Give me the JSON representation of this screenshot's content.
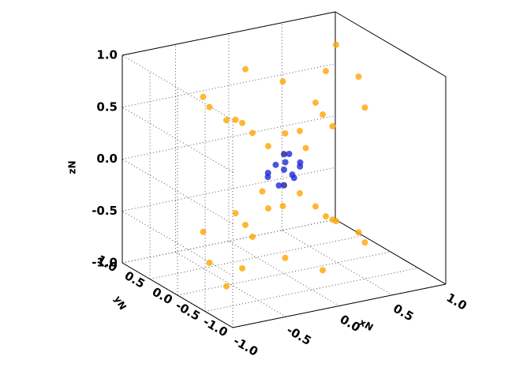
{
  "chart_data": {
    "type": "scatter3d",
    "xlabel": "xN",
    "ylabel": "yN",
    "zlabel": "zN",
    "xlim": [
      -1,
      1
    ],
    "ylim": [
      -1,
      1
    ],
    "zlim": [
      -1,
      1
    ],
    "xticks": [
      {
        "value": -1,
        "label": "-1.0"
      },
      {
        "value": -0.5,
        "label": "-0.5"
      },
      {
        "value": 0,
        "label": "0.0"
      },
      {
        "value": 0.5,
        "label": "0.5"
      },
      {
        "value": 1,
        "label": "1.0"
      }
    ],
    "yticks": [
      {
        "value": -1,
        "label": "-1.0"
      },
      {
        "value": -0.5,
        "label": "-0.5"
      },
      {
        "value": 0,
        "label": "0.0"
      },
      {
        "value": 0.5,
        "label": "0.5"
      },
      {
        "value": 1,
        "label": "1.0"
      }
    ],
    "zticks": [
      {
        "value": -1,
        "label": "-1.0"
      },
      {
        "value": -0.5,
        "label": "-0.5"
      },
      {
        "value": 0,
        "label": "0.0"
      },
      {
        "value": 0.5,
        "label": "0.5"
      },
      {
        "value": 1,
        "label": "1.0"
      }
    ],
    "grid": true,
    "series": [
      {
        "color": "#ffa500",
        "x": [
          0,
          0.2,
          -0.2,
          0.4,
          -0.4,
          0.3,
          -0.3,
          0.6,
          -0.6,
          0.5,
          -0.5,
          0.7,
          -0.7,
          0,
          0,
          0.8,
          -0.8,
          0.3,
          -0.3,
          0.1,
          0,
          0.2,
          -0.2,
          0.4,
          -0.4,
          0.3,
          -0.3,
          0.6,
          -0.6,
          0.5,
          -0.5,
          0.7,
          -0.7,
          0,
          0,
          0.8,
          -0.8,
          0.3,
          -0.3,
          -0.1
        ],
        "y": [
          0,
          0.1,
          -0.1,
          0.2,
          -0.2,
          -0.3,
          0.3,
          0.4,
          -0.4,
          -0.5,
          0.5,
          0,
          0,
          0.7,
          -0.7,
          0.6,
          -0.5,
          0.6,
          -0.6,
          -0.2,
          0,
          0.1,
          -0.1,
          0.2,
          -0.2,
          -0.3,
          0.3,
          0.4,
          -0.4,
          -0.5,
          0.5,
          0,
          0,
          0.7,
          -0.7,
          0.6,
          -0.5,
          0.6,
          -0.6,
          0.2
        ],
        "z": [
          0.15,
          0.3,
          0.3,
          0.5,
          0.5,
          0.45,
          0.45,
          0.7,
          0.7,
          0.65,
          0.65,
          0.75,
          0.75,
          0.75,
          0.75,
          0.85,
          0.8,
          0.6,
          0.6,
          0.25,
          -0.15,
          -0.3,
          -0.3,
          -0.5,
          -0.5,
          -0.45,
          -0.45,
          -0.7,
          -0.7,
          -0.65,
          -0.65,
          -0.75,
          -0.75,
          -0.75,
          -0.75,
          -0.85,
          -0.8,
          -0.6,
          -0.6,
          -0.25
        ]
      },
      {
        "color": "#1f2bd6",
        "x": [
          0,
          0.15,
          -0.15,
          0,
          0,
          0,
          0,
          0.1,
          -0.1,
          0.1,
          -0.1,
          0.12,
          -0.05
        ],
        "y": [
          0,
          0,
          0,
          0.15,
          -0.15,
          0,
          0,
          0.1,
          -0.1,
          -0.1,
          0.1,
          0.05,
          -0.12
        ],
        "z": [
          0,
          0,
          0,
          0,
          0,
          0.15,
          -0.15,
          0.1,
          -0.1,
          0.08,
          -0.08,
          -0.12,
          0.12
        ]
      }
    ]
  }
}
